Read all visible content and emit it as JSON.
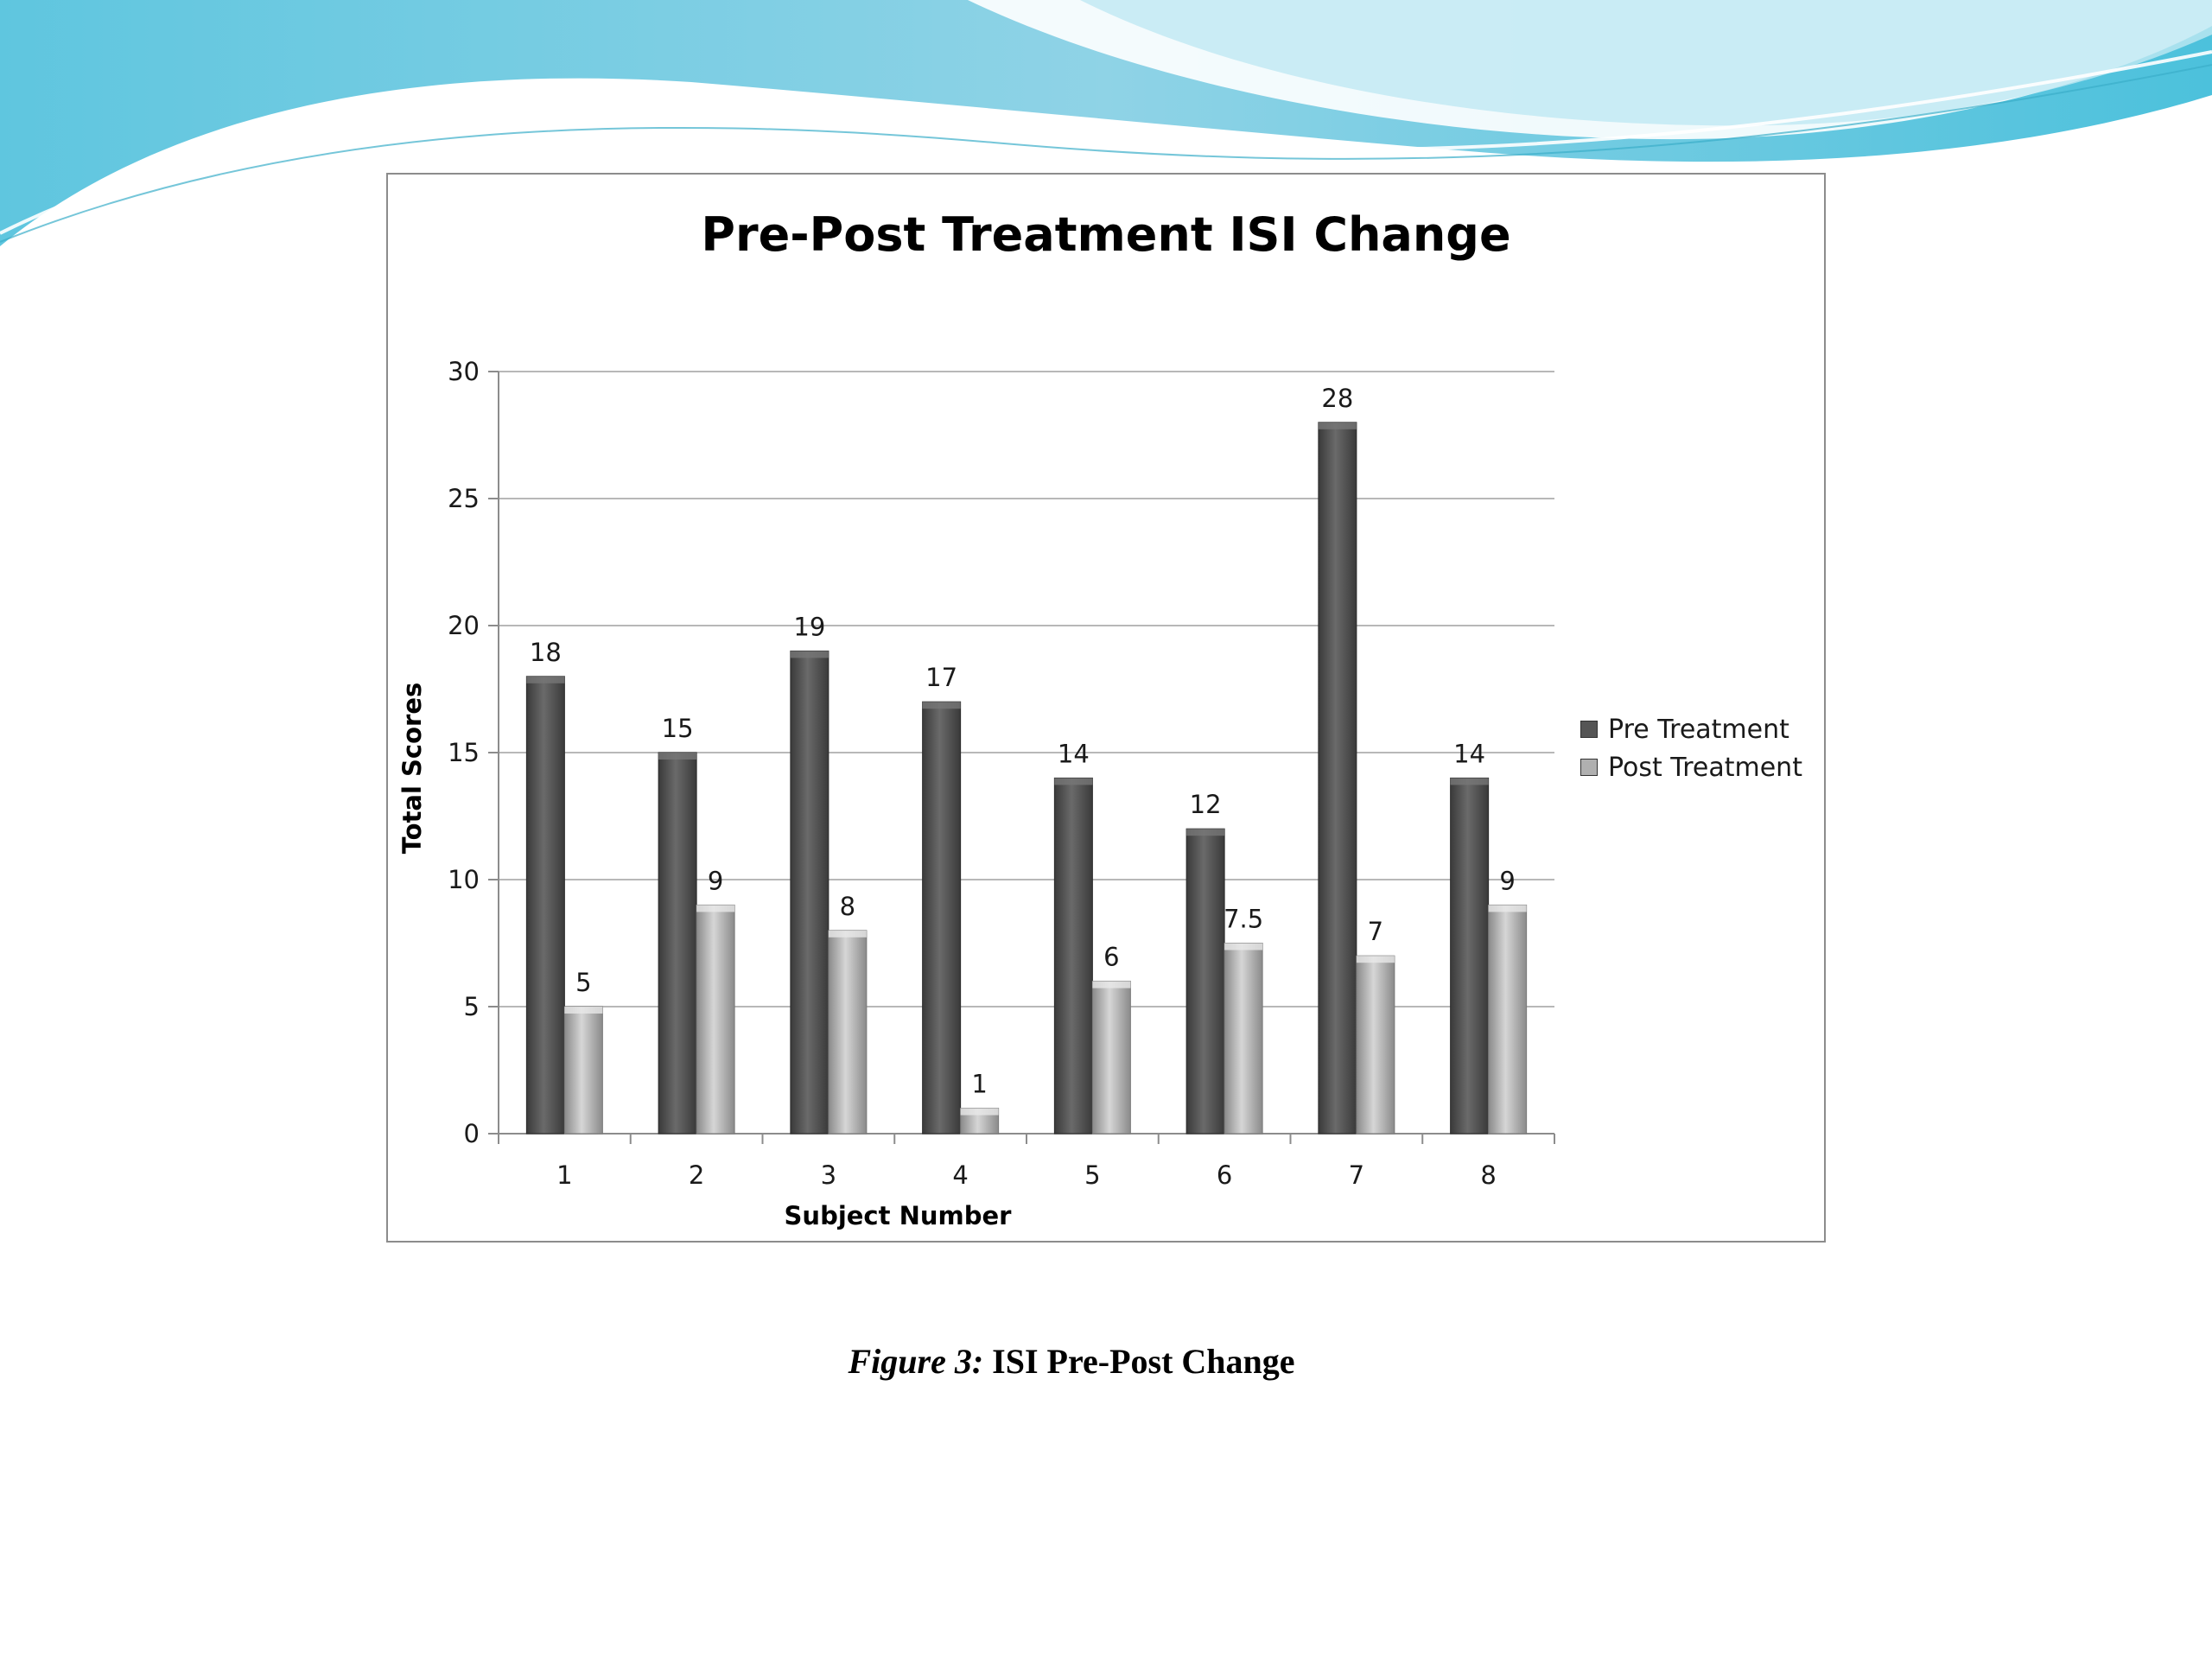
{
  "caption": {
    "figure_label": "Figure 3:",
    "text": " ISI Pre-Post Change"
  },
  "colors": {
    "pre": "#555555",
    "post": "#b0b0b0",
    "grid": "#b8b8b8",
    "wave_light": "#a9e1ee",
    "wave_mid": "#6fcfe3"
  },
  "chart_data": {
    "type": "bar",
    "title": "Pre-Post Treatment  ISI Change",
    "xlabel": "Subject Number",
    "ylabel": "Total Scores",
    "categories": [
      "1",
      "2",
      "3",
      "4",
      "5",
      "6",
      "7",
      "8"
    ],
    "ylim": [
      0,
      30
    ],
    "yticks": [
      "0",
      "5",
      "10",
      "15",
      "20",
      "25",
      "30"
    ],
    "grid": true,
    "legend_position": "right",
    "series": [
      {
        "name": "Pre Treatment",
        "values": [
          18,
          15,
          19,
          17,
          14,
          12,
          28,
          14
        ],
        "labels": [
          "18",
          "15",
          "19",
          "17",
          "14",
          "12",
          "28",
          "14"
        ]
      },
      {
        "name": "Post Treatment",
        "values": [
          5,
          9,
          8,
          1,
          6,
          7.5,
          7,
          9
        ],
        "labels": [
          "5",
          "9",
          "8",
          "1",
          "6",
          "7.5",
          "7",
          "9"
        ]
      }
    ]
  }
}
